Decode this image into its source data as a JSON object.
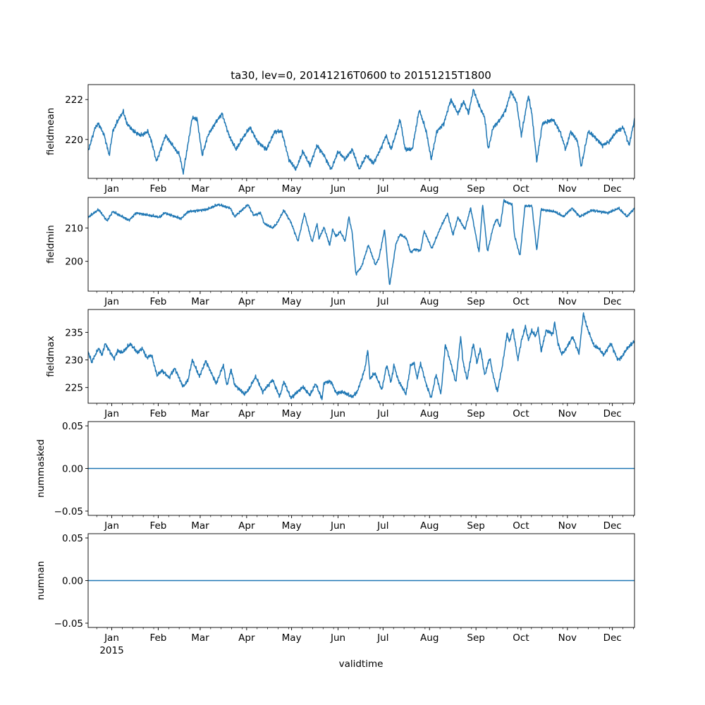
{
  "chart_data": {
    "type": "line",
    "title": "ta30, lev=0, 20141216T0600 to 20151215T1800",
    "xlabel": "validtime",
    "xlim": [
      0,
      364.5
    ],
    "year_label": "2015",
    "xticks": [
      {
        "label": "Jan",
        "x": 15.75
      },
      {
        "label": "Feb",
        "x": 46.75
      },
      {
        "label": "Mar",
        "x": 74.75
      },
      {
        "label": "Apr",
        "x": 105.75
      },
      {
        "label": "May",
        "x": 135.75
      },
      {
        "label": "Jun",
        "x": 166.75
      },
      {
        "label": "Jul",
        "x": 196.75
      },
      {
        "label": "Aug",
        "x": 227.75
      },
      {
        "label": "Sep",
        "x": 258.75
      },
      {
        "label": "Oct",
        "x": 288.75
      },
      {
        "label": "Nov",
        "x": 319.75
      },
      {
        "label": "Dec",
        "x": 349.75
      }
    ],
    "color": "#1f77b4",
    "panels": [
      {
        "ylabel": "fieldmean",
        "ylim": [
          218.05,
          222.75
        ],
        "yticks": [
          {
            "v": 220,
            "label": "220"
          },
          {
            "v": 222,
            "label": "222"
          }
        ],
        "x": [
          0,
          4.7,
          7,
          10.8,
          14.1,
          16.4,
          20.2,
          23.5,
          25.8,
          30.5,
          35.2,
          39.9,
          42.3,
          45.6,
          51.7,
          56.4,
          61.1,
          63.4,
          65.8,
          69.5,
          72.8,
          76.1,
          79.9,
          84.6,
          89.3,
          94,
          98.7,
          103.4,
          108.1,
          112.8,
          118.9,
          124.5,
          129.2,
          133.9,
          138.6,
          143.3,
          148,
          152.7,
          157.4,
          162.1,
          166.8,
          171.5,
          176.2,
          180.9,
          185.6,
          190.3,
          195,
          198.8,
          202.1,
          208.2,
          211.5,
          216.2,
          220.9,
          225.6,
          228.9,
          232.6,
          237.3,
          242,
          246.7,
          250.5,
          253.8,
          257,
          260.8,
          264.6,
          266.9,
          270.2,
          274.9,
          278.7,
          282,
          285.7,
          289,
          293.7,
          296,
          299.3,
          303.1,
          310.2,
          314.8,
          318.6,
          321.9,
          326.6,
          328.9,
          333.6,
          338.3,
          343,
          347.7,
          352.4,
          357.1,
          360.9,
          364.5
        ],
        "y": [
          219.4,
          220.6,
          220.8,
          220.2,
          219.2,
          220.4,
          221.0,
          221.4,
          220.8,
          220.4,
          220.2,
          220.4,
          219.9,
          218.9,
          220.2,
          219.7,
          219.2,
          218.3,
          219.4,
          221.1,
          221.0,
          219.2,
          220.2,
          220.8,
          221.3,
          220.2,
          219.5,
          220.1,
          220.6,
          219.9,
          219.5,
          220.4,
          220.4,
          219.0,
          218.5,
          219.4,
          218.7,
          219.7,
          219.2,
          218.5,
          219.4,
          219.0,
          219.5,
          218.5,
          219.2,
          218.8,
          219.5,
          220.2,
          219.5,
          221.0,
          219.5,
          219.5,
          221.5,
          220.4,
          219.0,
          220.4,
          220.8,
          222.0,
          221.3,
          221.9,
          221.3,
          222.5,
          221.7,
          221.1,
          219.5,
          220.6,
          221.0,
          221.5,
          222.4,
          221.9,
          220.2,
          222.2,
          221.3,
          218.9,
          220.8,
          221.0,
          220.4,
          219.5,
          220.4,
          219.9,
          218.6,
          220.4,
          220.1,
          219.7,
          219.9,
          220.4,
          220.6,
          219.7,
          221.0
        ]
      },
      {
        "ylabel": "fieldmin",
        "ylim": [
          191.06,
          219.15
        ],
        "yticks": [
          {
            "v": 200,
            "label": "200"
          },
          {
            "v": 210,
            "label": "210"
          }
        ],
        "x": [
          0,
          7,
          12.7,
          16.4,
          27.3,
          32,
          47.9,
          50.8,
          62,
          66.7,
          78.9,
          86.9,
          94.9,
          97.7,
          106.7,
          110.4,
          115.1,
          117.5,
          123.1,
          125.9,
          130.6,
          135.3,
          140,
          144.3,
          149.4,
          152.7,
          154.1,
          157.4,
          161.2,
          163.1,
          165.4,
          168.2,
          171.5,
          173.9,
          176.2,
          178.6,
          182.3,
          187,
          191.7,
          194.1,
          197.8,
          201.1,
          205.4,
          208.2,
          212.4,
          215.2,
          217.6,
          221.8,
          224.2,
          229.3,
          235,
          239.7,
          243.4,
          246.7,
          251.4,
          255.2,
          260.8,
          263.2,
          266.4,
          270.2,
          272.6,
          274.9,
          277.3,
          282.9,
          284.3,
          288.1,
          291.4,
          296.1,
          299.3,
          302.2,
          311.1,
          317.2,
          322.8,
          328,
          336,
          346.8,
          353.9,
          359.5,
          364.5
        ],
        "y": [
          213.2,
          215.5,
          212.1,
          214.9,
          212.3,
          214.5,
          213.2,
          214.5,
          212.8,
          214.9,
          215.5,
          217.0,
          215.9,
          213.4,
          217.0,
          213.8,
          214.5,
          211.3,
          210.0,
          211.3,
          215.3,
          211.7,
          206.0,
          214.3,
          205.7,
          211.3,
          206.8,
          210.2,
          204.7,
          209.6,
          207.4,
          208.9,
          206.0,
          213.4,
          208.5,
          196.2,
          198.3,
          204.9,
          198.9,
          201.1,
          209.6,
          192.6,
          205.3,
          208.1,
          206.8,
          202.6,
          203.6,
          203.2,
          209.1,
          203.8,
          210.0,
          214.3,
          207.9,
          213.2,
          209.6,
          216.0,
          202.6,
          217.0,
          202.8,
          210.2,
          212.8,
          210.2,
          218.1,
          217.0,
          208.1,
          201.5,
          216.6,
          216.6,
          203.2,
          215.5,
          214.9,
          213.4,
          215.9,
          213.4,
          215.3,
          214.5,
          215.9,
          213.4,
          215.9
        ]
      },
      {
        "ylabel": "fieldmax",
        "ylim": [
          222.15,
          239.14
        ],
        "yticks": [
          {
            "v": 225,
            "label": "225"
          },
          {
            "v": 230,
            "label": "230"
          },
          {
            "v": 235,
            "label": "235"
          }
        ],
        "x": [
          0,
          2.3,
          7,
          9.4,
          11.3,
          17.4,
          19.7,
          22.6,
          28.2,
          32.9,
          36.2,
          39,
          42.3,
          46,
          49.3,
          54,
          57.8,
          63.4,
          66.7,
          69.5,
          74.2,
          78.5,
          85.5,
          90.2,
          92.6,
          95.4,
          97.7,
          104.3,
          107.1,
          111.8,
          116.5,
          123.1,
          127.8,
          130.6,
          135.3,
          143.3,
          148,
          151.8,
          156,
          157.4,
          162.1,
          165.4,
          170.1,
          176.2,
          179.5,
          182.3,
          184.7,
          186.6,
          188,
          191.3,
          196,
          199.2,
          202.1,
          204,
          206.8,
          212,
          215.2,
          217.6,
          219.4,
          221.8,
          225.6,
          228.9,
          232.1,
          235.4,
          238.3,
          242,
          245.3,
          248.6,
          250,
          252.8,
          257,
          259.4,
          261.7,
          264.6,
          267.9,
          270.2,
          273,
          276.3,
          279.6,
          281,
          283.4,
          286.7,
          289,
          291.8,
          293.7,
          296,
          298.4,
          300.3,
          302.2,
          305.5,
          310.2,
          311.1,
          313.5,
          315.8,
          318.1,
          323.3,
          327.5,
          330.4,
          332.7,
          337.4,
          340.7,
          344,
          348.7,
          353.4,
          356.2,
          359.5,
          364.5
        ],
        "y": [
          231.5,
          229.6,
          232.1,
          230.9,
          233.0,
          230.2,
          231.7,
          231.3,
          232.9,
          231.3,
          232.1,
          230.4,
          230.9,
          227.2,
          228.1,
          226.8,
          228.5,
          225.1,
          226.4,
          230.0,
          227.0,
          229.8,
          225.7,
          229.1,
          225.3,
          228.3,
          225.5,
          223.8,
          224.6,
          227.0,
          224.2,
          226.4,
          223.3,
          226.1,
          223.1,
          225.1,
          223.6,
          225.7,
          222.9,
          225.9,
          226.1,
          224.0,
          224.2,
          223.3,
          224.2,
          226.4,
          228.5,
          231.9,
          226.6,
          227.6,
          224.6,
          229.1,
          225.9,
          229.1,
          226.4,
          223.8,
          229.1,
          229.4,
          226.6,
          229.4,
          225.5,
          223.1,
          227.4,
          223.8,
          232.8,
          229.4,
          225.9,
          234.3,
          229.8,
          226.4,
          233.0,
          229.4,
          232.1,
          227.2,
          230.4,
          227.2,
          224.2,
          228.9,
          234.9,
          233.2,
          235.7,
          230.0,
          233.4,
          236.1,
          233.6,
          235.3,
          234.3,
          235.7,
          231.5,
          235.3,
          234.7,
          237.0,
          233.0,
          231.1,
          231.7,
          234.2,
          231.1,
          238.4,
          236.0,
          232.6,
          232.1,
          230.9,
          233.0,
          230.0,
          230.6,
          232.1,
          233.4
        ]
      },
      {
        "ylabel": "nummasked",
        "ylim": [
          -0.055,
          0.055
        ],
        "yticks": [
          {
            "v": -0.05,
            "label": "−0.05"
          },
          {
            "v": 0,
            "label": "0.00"
          },
          {
            "v": 0.05,
            "label": "0.05"
          }
        ],
        "x": [
          0,
          364.5
        ],
        "y": [
          0,
          0
        ]
      },
      {
        "ylabel": "numnan",
        "ylim": [
          -0.055,
          0.055
        ],
        "yticks": [
          {
            "v": -0.05,
            "label": "−0.05"
          },
          {
            "v": 0,
            "label": "0.00"
          },
          {
            "v": 0.05,
            "label": "0.05"
          }
        ],
        "x": [
          0,
          364.5
        ],
        "y": [
          0,
          0
        ]
      }
    ]
  }
}
